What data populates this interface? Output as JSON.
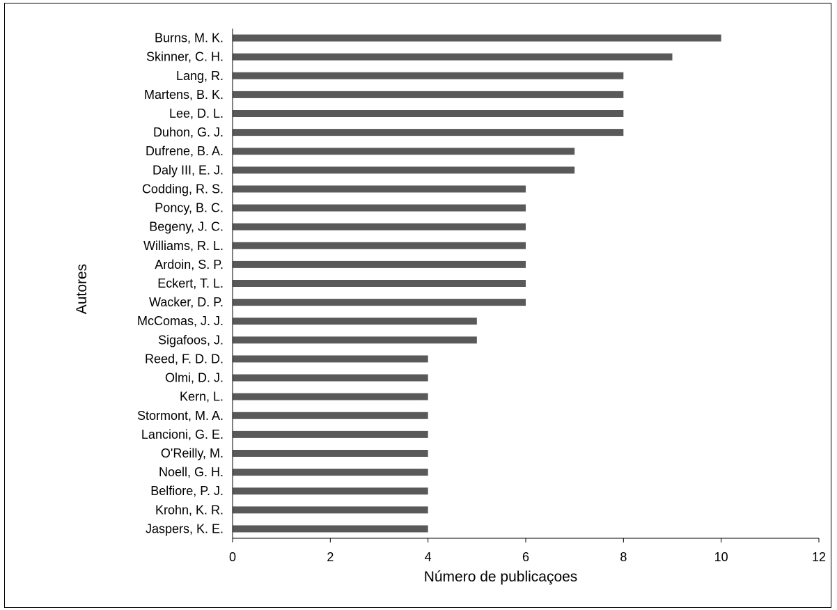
{
  "chart_data": {
    "type": "bar",
    "orientation": "horizontal",
    "xlabel": "Número de publicaçoes",
    "ylabel": "Autores",
    "xlim": [
      0,
      12
    ],
    "xticks": [
      0,
      2,
      4,
      6,
      8,
      10,
      12
    ],
    "grid": false,
    "bar_color": "#595959",
    "categories": [
      "Burns, M. K.",
      "Skinner, C. H.",
      "Lang, R.",
      "Martens, B. K.",
      "Lee, D. L.",
      "Duhon, G. J.",
      "Dufrene, B. A.",
      "Daly III, E. J.",
      "Codding, R. S.",
      "Poncy, B. C.",
      "Begeny, J. C.",
      "Williams, R. L.",
      "Ardoin, S. P.",
      "Eckert, T. L.",
      "Wacker, D. P.",
      "McComas, J. J.",
      "Sigafoos, J.",
      "Reed, F. D. D.",
      "Olmi, D. J.",
      "Kern, L.",
      "Stormont, M. A.",
      "Lancioni, G. E.",
      "O'Reilly, M.",
      "Noell, G. H.",
      "Belfiore, P. J.",
      "Krohn, K. R.",
      "Jaspers, K. E."
    ],
    "values": [
      10,
      9,
      8,
      8,
      8,
      8,
      7,
      7,
      6,
      6,
      6,
      6,
      6,
      6,
      6,
      5,
      5,
      4,
      4,
      4,
      4,
      4,
      4,
      4,
      4,
      4,
      4
    ]
  }
}
